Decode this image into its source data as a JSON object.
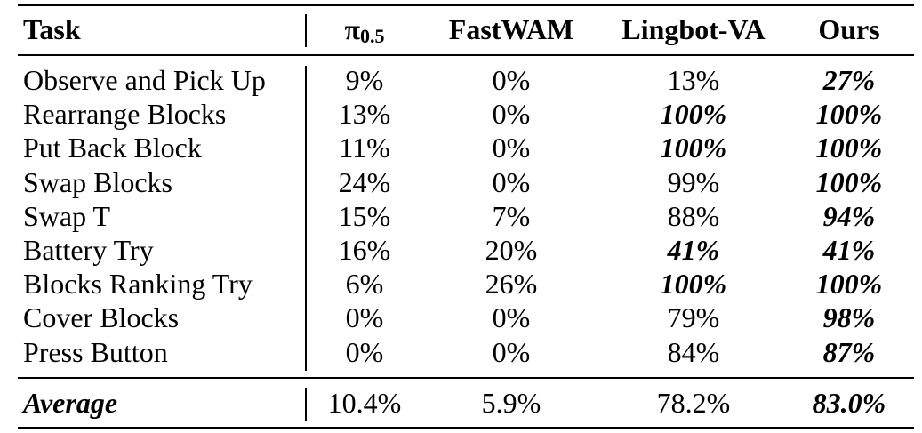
{
  "table": {
    "headers": {
      "task": "Task",
      "pi_symbol": "π",
      "pi_subscript": "0.5",
      "fastwam": "FastWAM",
      "lingbot": "Lingbot-VA",
      "ours": "Ours"
    },
    "rows": [
      {
        "task": "Observe and Pick Up",
        "pi": "9%",
        "fastwam": "0%",
        "lingbot": "13%",
        "ours": "27%",
        "bold": [
          "ours"
        ]
      },
      {
        "task": "Rearrange Blocks",
        "pi": "13%",
        "fastwam": "0%",
        "lingbot": "100%",
        "ours": "100%",
        "bold": [
          "lingbot",
          "ours"
        ]
      },
      {
        "task": "Put Back Block",
        "pi": "11%",
        "fastwam": "0%",
        "lingbot": "100%",
        "ours": "100%",
        "bold": [
          "lingbot",
          "ours"
        ]
      },
      {
        "task": "Swap Blocks",
        "pi": "24%",
        "fastwam": "0%",
        "lingbot": "99%",
        "ours": "100%",
        "bold": [
          "ours"
        ]
      },
      {
        "task": "Swap T",
        "pi": "15%",
        "fastwam": "7%",
        "lingbot": "88%",
        "ours": "94%",
        "bold": [
          "ours"
        ]
      },
      {
        "task": "Battery Try",
        "pi": "16%",
        "fastwam": "20%",
        "lingbot": "41%",
        "ours": "41%",
        "bold": [
          "lingbot",
          "ours"
        ]
      },
      {
        "task": "Blocks Ranking Try",
        "pi": "6%",
        "fastwam": "26%",
        "lingbot": "100%",
        "ours": "100%",
        "bold": [
          "lingbot",
          "ours"
        ]
      },
      {
        "task": "Cover Blocks",
        "pi": "0%",
        "fastwam": "0%",
        "lingbot": "79%",
        "ours": "98%",
        "bold": [
          "ours"
        ]
      },
      {
        "task": "Press Button",
        "pi": "0%",
        "fastwam": "0%",
        "lingbot": "84%",
        "ours": "87%",
        "bold": [
          "ours"
        ]
      }
    ],
    "average": {
      "label": "Average",
      "pi": "10.4%",
      "fastwam": "5.9%",
      "lingbot": "78.2%",
      "ours": "83.0%",
      "bold": [
        "ours"
      ]
    }
  }
}
